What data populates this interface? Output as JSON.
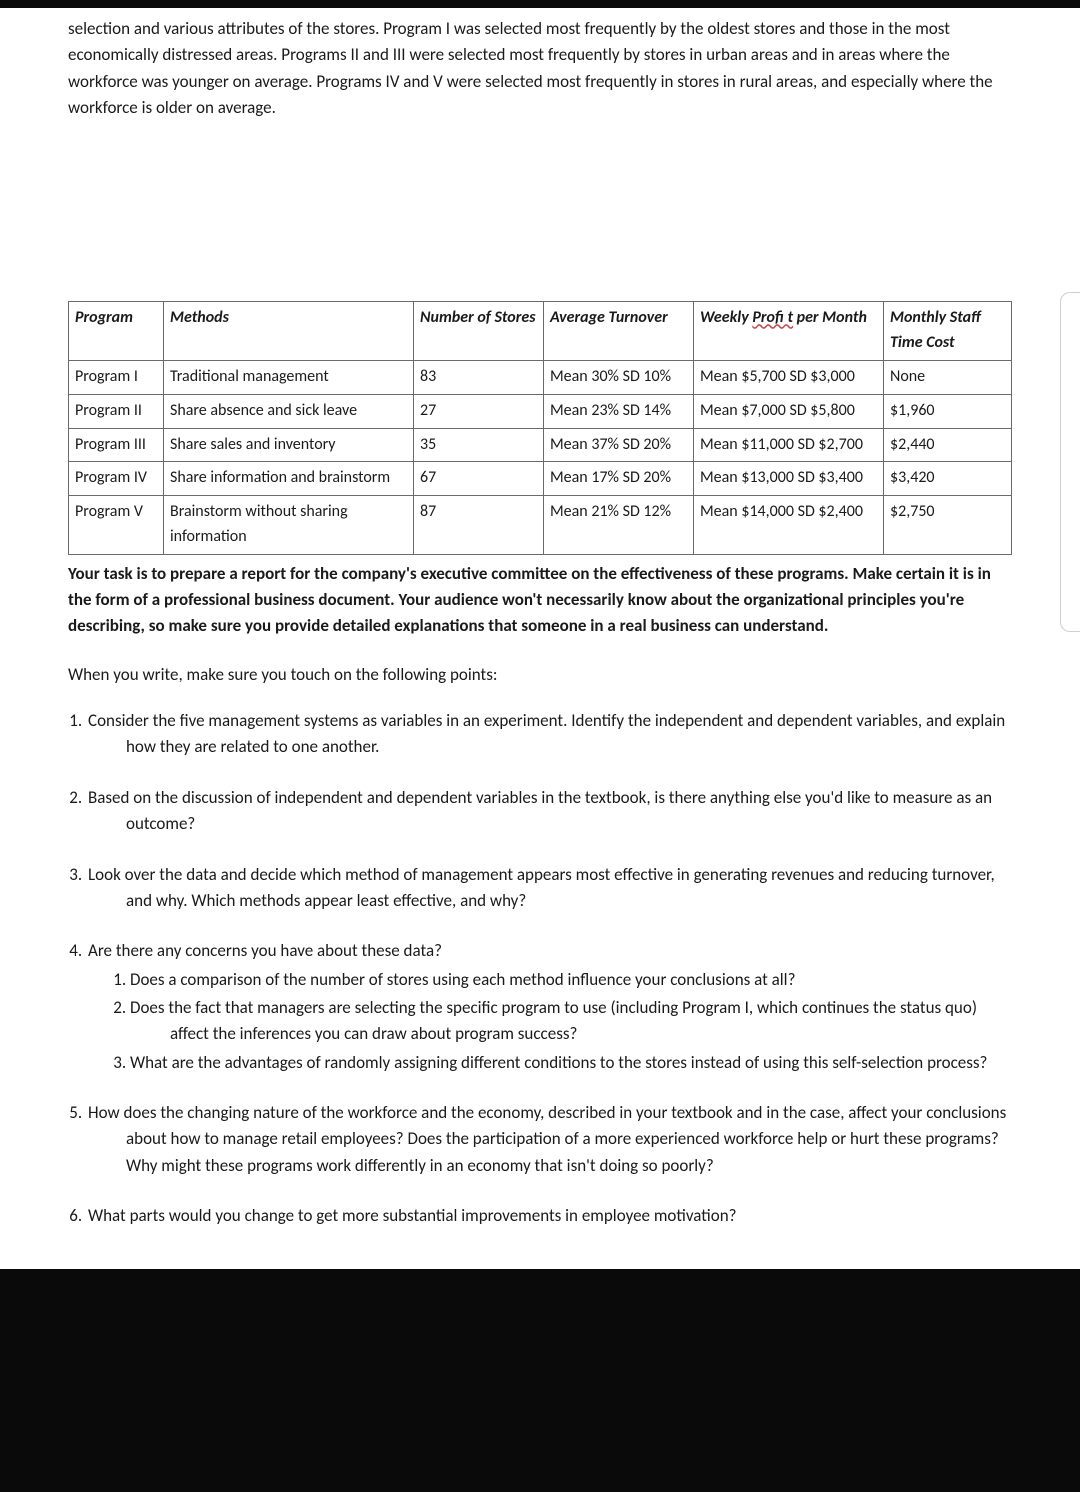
{
  "intro_paragraph": "selection and various attributes of the stores. Program I was selected most frequently by the oldest stores and those in the most economically distressed areas. Programs II and III were selected most frequently by stores in urban areas and in areas where the workforce was younger on average. Programs IV and V were selected most frequently in stores in rural areas, and especially where the workforce is older on average.",
  "table": {
    "headers": {
      "program": "Program",
      "methods": "Methods",
      "stores": "Number of Stores",
      "turnover": "Average Turnover",
      "profit_prefix": "Weekly ",
      "profit_typo": "Profi t",
      "profit_suffix": " per Month",
      "cost": "Monthly Staff Time Cost"
    },
    "rows": [
      {
        "program": "Program I",
        "methods": "Traditional management",
        "stores": "83",
        "turnover": "Mean 30% SD 10%",
        "profit": "Mean $5,700 SD $3,000",
        "cost": "None"
      },
      {
        "program": "Program II",
        "methods": "Share absence and sick leave",
        "stores": "27",
        "turnover": "Mean 23% SD 14%",
        "profit": "Mean $7,000 SD $5,800",
        "cost": "$1,960"
      },
      {
        "program": "Program III",
        "methods": "Share sales and inventory",
        "stores": "35",
        "turnover": "Mean 37% SD 20%",
        "profit": "Mean $11,000 SD $2,700",
        "cost": "$2,440"
      },
      {
        "program": "Program IV",
        "methods": "Share information and brainstorm",
        "stores": "67",
        "turnover": "Mean 17% SD 20%",
        "profit": "Mean $13,000 SD $3,400",
        "cost": "$3,420"
      },
      {
        "program": "Program V",
        "methods": "Brainstorm without sharing information",
        "stores": "87",
        "turnover": "Mean 21% SD 12%",
        "profit": "Mean $14,000 SD $2,400",
        "cost": "$2,750"
      }
    ]
  },
  "task_bold": "Your task is to prepare a report for the company's executive committee on the effectiveness of these programs. Make certain it is in the form of a professional business document. Your audience won't necessarily know about the organizational principles you're describing, so make sure you provide detailed explanations that someone in a real business can understand.",
  "plain_followup": "When you write, make sure you touch on the following points:",
  "points": {
    "p1": "Consider the five management systems as variables in an experiment. Identify the independent and dependent variables, and explain how they are related to one another.",
    "p2": "Based on the discussion of independent and dependent variables in the textbook, is there anything else you'd like to measure as an outcome?",
    "p3": "Look over the data and decide which method of management appears most effective in generating revenues and reducing turnover, and why. Which methods appear least effective, and why?",
    "p4": "Are there any concerns you have about these data?",
    "p4_sub": {
      "a": "Does a comparison of the number of stores using each method influence your conclusions at all?",
      "b": "Does the fact that managers are selecting the specific program to use (including Program I, which continues the status quo) affect the inferences you can draw about program success?",
      "c": "What are the advantages of randomly assigning different conditions to the stores instead of using this self-selection process?"
    },
    "p5": "How does the changing nature of the workforce and the economy, described in your textbook and in the case, affect your conclusions about how to manage retail employees? Does the participation of a more experienced workforce help or hurt these programs? Why might these programs work differently in an economy that isn't doing so poorly?",
    "p6": "What parts would you change to get more substantial improvements in employee motivation?"
  }
}
